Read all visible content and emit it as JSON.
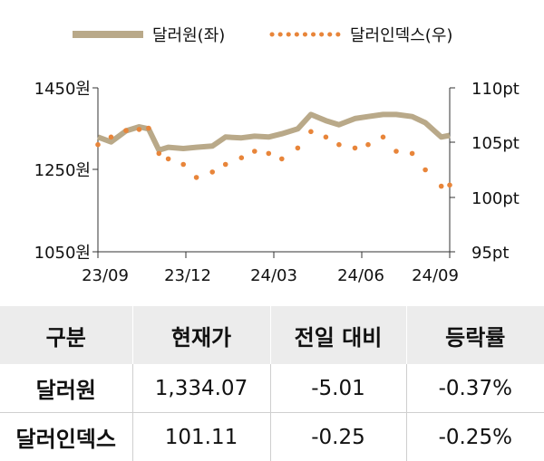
{
  "chart_data": {
    "type": "line",
    "legend": {
      "placement": "top",
      "items": [
        {
          "label": "달러원(좌)",
          "color": "#b9a989",
          "style": "solid"
        },
        {
          "label": "달러인덱스(우)",
          "color": "#e8853a",
          "style": "dotted"
        }
      ]
    },
    "x_tick_labels": [
      "23/09",
      "23/12",
      "24/03",
      "24/06",
      "24/09"
    ],
    "y_left": {
      "min": 1050,
      "max": 1450,
      "ticks": [
        "1450원",
        "1250원",
        "1050원"
      ],
      "tick_values": [
        1450,
        1250,
        1050
      ]
    },
    "y_right": {
      "min": 95,
      "max": 110,
      "ticks": [
        "110pt",
        "105pt",
        "100pt",
        "95pt"
      ],
      "tick_values": [
        110,
        105,
        100,
        95
      ]
    },
    "grid": false,
    "series": [
      {
        "name": "달러원",
        "axis": "left",
        "color": "#b9a989",
        "x": [
          "2023-09-01",
          "2023-09-15",
          "2023-10-01",
          "2023-10-15",
          "2023-10-25",
          "2023-11-05",
          "2023-11-15",
          "2023-12-01",
          "2023-12-15",
          "2024-01-01",
          "2024-01-15",
          "2024-02-01",
          "2024-02-15",
          "2024-03-01",
          "2024-03-15",
          "2024-04-01",
          "2024-04-15",
          "2024-05-01",
          "2024-05-15",
          "2024-06-01",
          "2024-06-15",
          "2024-07-01",
          "2024-07-15",
          "2024-08-01",
          "2024-08-15",
          "2024-09-01",
          "2024-09-10"
        ],
        "values": [
          1330,
          1318,
          1345,
          1355,
          1350,
          1298,
          1305,
          1302,
          1305,
          1308,
          1330,
          1328,
          1332,
          1330,
          1338,
          1350,
          1385,
          1370,
          1360,
          1375,
          1380,
          1385,
          1385,
          1380,
          1365,
          1330,
          1334.07
        ]
      },
      {
        "name": "달러인덱스",
        "axis": "right",
        "color": "#e8853a",
        "x": [
          "2023-09-01",
          "2023-09-15",
          "2023-10-01",
          "2023-10-15",
          "2023-10-25",
          "2023-11-05",
          "2023-11-15",
          "2023-12-01",
          "2023-12-15",
          "2024-01-01",
          "2024-01-15",
          "2024-02-01",
          "2024-02-15",
          "2024-03-01",
          "2024-03-15",
          "2024-04-01",
          "2024-04-15",
          "2024-05-01",
          "2024-05-15",
          "2024-06-01",
          "2024-06-15",
          "2024-07-01",
          "2024-07-15",
          "2024-08-01",
          "2024-08-15",
          "2024-09-01",
          "2024-09-10"
        ],
        "values": [
          104.8,
          105.5,
          106.1,
          106.2,
          106.3,
          104.0,
          103.5,
          103.0,
          101.8,
          102.3,
          103.0,
          103.6,
          104.2,
          104.0,
          103.5,
          104.5,
          106.0,
          105.5,
          104.8,
          104.5,
          104.8,
          105.5,
          104.2,
          104.0,
          102.5,
          101.0,
          101.11
        ]
      }
    ]
  },
  "table": {
    "headers": [
      "구분",
      "현재가",
      "전일 대비",
      "등락률"
    ],
    "rows": [
      [
        "달러원",
        "1,334.07",
        "-5.01",
        "-0.37%"
      ],
      [
        "달러인덱스",
        "101.11",
        "-0.25",
        "-0.25%"
      ]
    ]
  }
}
